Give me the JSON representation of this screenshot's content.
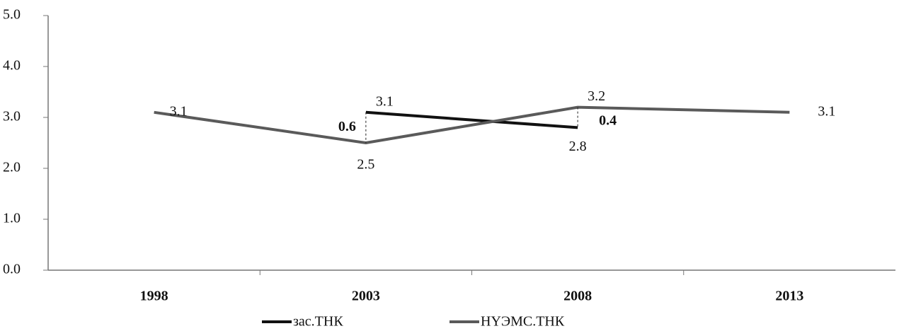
{
  "chart_data": {
    "type": "line",
    "categories": [
      "1998",
      "2003",
      "2008",
      "2013"
    ],
    "series": [
      {
        "name": "зас.ТНК",
        "color": "#111111",
        "values": [
          null,
          3.1,
          2.8,
          null
        ]
      },
      {
        "name": "НҮЭМС.ТНК",
        "color": "#5a5a5a",
        "values": [
          3.1,
          2.5,
          3.2,
          3.1
        ]
      }
    ],
    "differences": [
      null,
      0.6,
      0.4,
      null
    ],
    "ylim": [
      0,
      5
    ],
    "yticks": [
      {
        "value": 0,
        "label": "0.0"
      },
      {
        "value": 1,
        "label": "1.0"
      },
      {
        "value": 2,
        "label": "2.0"
      },
      {
        "value": 3,
        "label": "3.0"
      },
      {
        "value": 4,
        "label": "4.0"
      },
      {
        "value": 5,
        "label": "5.0"
      }
    ],
    "data_labels": true,
    "legend": "bottom"
  }
}
